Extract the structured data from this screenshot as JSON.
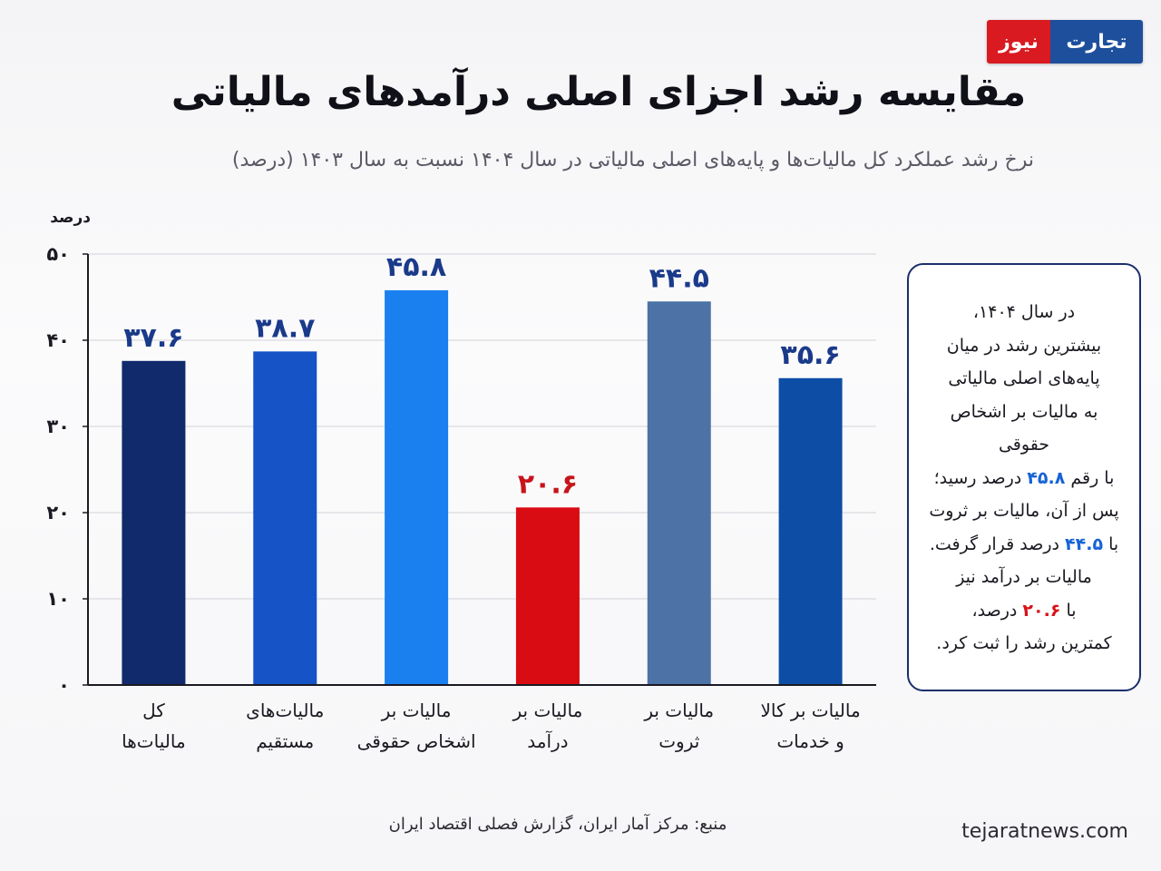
{
  "brand": {
    "logo_part1": "تجارت",
    "logo_part2": "نیوز",
    "website": "tejaratnews.com"
  },
  "title": "مقایسه رشد اجزای اصلی درآمدهای مالیاتی",
  "subtitle": "نرخ رشد عملکرد کل مالیات‌ها و پایه‌های اصلی مالیاتی در سال ۱۴۰۴ نسبت به سال ۱۴۰۳ (درصد)",
  "source": "منبع: مرکز آمار ایران، گزارش فصلی اقتصاد ایران",
  "callout": {
    "line1": "در سال ۱۴۰۴،",
    "line2": "بیشترین رشد در میان",
    "line3": "پایه‌های اصلی مالیاتی",
    "line4": "به مالیات بر اشخاص حقوقی",
    "line5_pre": "با رقم",
    "line5_value": "۴۵.۸",
    "line5_post": "درصد رسید؛",
    "line6": "پس از آن، مالیات بر ثروت",
    "line7_pre": "با",
    "line7_value": "۴۴.۵",
    "line7_post": "درصد قرار گرفت.",
    "line8": "مالیات بر درآمد نیز",
    "line9_pre": "با",
    "line9_value": "۲۰.۶",
    "line9_post": "درصد،",
    "line10": "کمترین رشد را ثبت کرد."
  },
  "colors": {
    "grid": "#d3d3da",
    "axis": "#1a1a22",
    "label_default": "#1a3a8a",
    "label_red": "#c8131a"
  },
  "chart_data": {
    "type": "bar",
    "ylabel": "درصد",
    "ylim": [
      0,
      50
    ],
    "yticks": [
      0,
      10,
      20,
      30,
      40,
      50
    ],
    "ytick_labels": [
      "۰",
      "۱۰",
      "۲۰",
      "۳۰",
      "۴۰",
      "۵۰"
    ],
    "grid": true,
    "categories": [
      [
        "کل",
        "مالیات‌ها"
      ],
      [
        "مالیات‌های",
        "مستقیم"
      ],
      [
        "مالیات بر",
        "اشخاص حقوقی"
      ],
      [
        "مالیات بر",
        "درآمد"
      ],
      [
        "مالیات بر",
        "ثروت"
      ],
      [
        "مالیات بر کالا",
        "و خدمات"
      ]
    ],
    "values": [
      37.6,
      38.7,
      45.8,
      20.6,
      44.5,
      35.6
    ],
    "value_labels": [
      "۳۷.۶",
      "۳۸.۷",
      "۴۵.۸",
      "۲۰.۶",
      "۴۴.۵",
      "۳۵.۶"
    ],
    "bar_colors": [
      "#102a6b",
      "#1553c7",
      "#1a80f0",
      "#d80c12",
      "#4c72a6",
      "#0d4da6"
    ]
  }
}
